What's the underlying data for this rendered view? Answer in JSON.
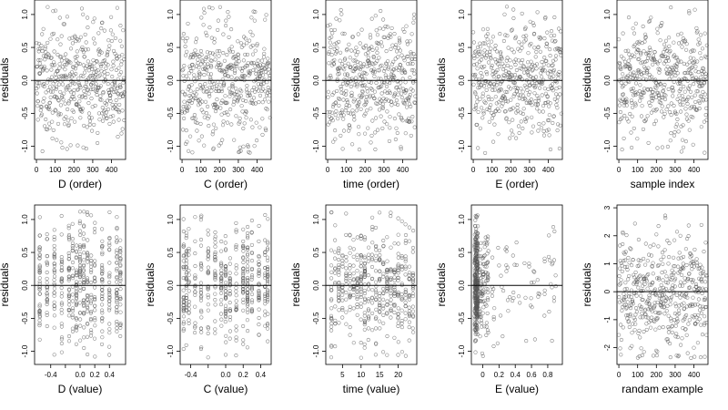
{
  "chart_data": [
    {
      "type": "scatter",
      "xlabel": "D (order)",
      "ylabel": "residuals",
      "xlim": [
        -10,
        475
      ],
      "ylim": [
        -1.2,
        1.22
      ],
      "xticks": [
        0,
        100,
        200,
        300,
        400
      ],
      "yticks": [
        -1.0,
        -0.5,
        0.0,
        0.5,
        1.0
      ],
      "ytick_labels": [
        "-1.0",
        "-0.5",
        "0.0",
        "0.5",
        "1.0"
      ],
      "hline": 0,
      "x_kind": "order",
      "n_points": 470,
      "seed": 11
    },
    {
      "type": "scatter",
      "xlabel": "C (order)",
      "ylabel": "residuals",
      "xlim": [
        -10,
        475
      ],
      "ylim": [
        -1.2,
        1.22
      ],
      "xticks": [
        0,
        100,
        200,
        300,
        400
      ],
      "yticks": [
        -1.0,
        -0.5,
        0.0,
        0.5,
        1.0
      ],
      "ytick_labels": [
        "-1.0",
        "-0.5",
        "0.0",
        "0.5",
        "1.0"
      ],
      "hline": 0,
      "x_kind": "order",
      "n_points": 470,
      "seed": 23
    },
    {
      "type": "scatter",
      "xlabel": "time (order)",
      "ylabel": "residuals",
      "xlim": [
        -10,
        475
      ],
      "ylim": [
        -1.2,
        1.22
      ],
      "xticks": [
        0,
        100,
        200,
        300,
        400
      ],
      "yticks": [
        -1.0,
        -0.5,
        0.0,
        0.5,
        1.0
      ],
      "ytick_labels": [
        "-1.0",
        "-0.5",
        "0.0",
        "0.5",
        "1.0"
      ],
      "hline": 0,
      "x_kind": "order",
      "n_points": 470,
      "seed": 37
    },
    {
      "type": "scatter",
      "xlabel": "E (order)",
      "ylabel": "residuals",
      "xlim": [
        -10,
        475
      ],
      "ylim": [
        -1.2,
        1.22
      ],
      "xticks": [
        0,
        100,
        200,
        300,
        400
      ],
      "yticks": [
        -1.0,
        -0.5,
        0.0,
        0.5,
        1.0
      ],
      "ytick_labels": [
        "-1.0",
        "-0.5",
        "0.0",
        "0.5",
        "1.0"
      ],
      "hline": 0,
      "x_kind": "order",
      "n_points": 470,
      "seed": 41
    },
    {
      "type": "scatter",
      "xlabel": "sample index",
      "ylabel": "residuals",
      "xlim": [
        -10,
        475
      ],
      "ylim": [
        -1.2,
        1.22
      ],
      "xticks": [
        0,
        100,
        200,
        300,
        400
      ],
      "yticks": [
        -1.0,
        -0.5,
        0.0,
        0.5,
        1.0
      ],
      "ytick_labels": [
        "-1.0",
        "-0.5",
        "0.0",
        "0.5",
        "1.0"
      ],
      "hline": 0,
      "x_kind": "order",
      "n_points": 470,
      "seed": 53
    },
    {
      "type": "scatter",
      "xlabel": "D (value)",
      "ylabel": "residuals",
      "xlim": [
        -0.62,
        0.62
      ],
      "ylim": [
        -1.2,
        1.22
      ],
      "xticks": [
        -0.4,
        -0.2,
        0.0,
        0.2,
        0.4
      ],
      "xtick_labels": [
        "-0.4",
        "",
        "0.0",
        "0.2",
        "0.4"
      ],
      "yticks": [
        -1.0,
        -0.5,
        0.0,
        0.5,
        1.0
      ],
      "ytick_labels": [
        "-1.0",
        "-0.5",
        "0.0",
        "0.5",
        "1.0"
      ],
      "hline": 0,
      "x_kind": "discrete",
      "x_levels": [
        -0.55,
        -0.45,
        -0.35,
        -0.25,
        -0.15,
        -0.1,
        -0.05,
        0.0,
        0.05,
        0.1,
        0.15,
        0.2,
        0.3,
        0.4,
        0.5,
        0.55
      ],
      "n_points": 470,
      "seed": 67
    },
    {
      "type": "scatter",
      "xlabel": "C (value)",
      "ylabel": "residuals",
      "xlim": [
        -0.52,
        0.52
      ],
      "ylim": [
        -1.2,
        1.22
      ],
      "xticks": [
        -0.4,
        -0.2,
        0.0,
        0.2,
        0.4
      ],
      "xtick_labels": [
        "-0.4",
        "",
        "0.0",
        "0.2",
        "0.4"
      ],
      "yticks": [
        -1.0,
        -0.5,
        0.0,
        0.5,
        1.0
      ],
      "ytick_labels": [
        "-1.0",
        "-0.5",
        "0.0",
        "0.5",
        "1.0"
      ],
      "hline": 0,
      "x_kind": "discrete",
      "x_levels": [
        -0.48,
        -0.45,
        -0.42,
        -0.35,
        -0.28,
        -0.2,
        -0.12,
        -0.05,
        0.0,
        0.05,
        0.12,
        0.2,
        0.25,
        0.3,
        0.38,
        0.45,
        0.48
      ],
      "n_points": 470,
      "seed": 71
    },
    {
      "type": "scatter",
      "xlabel": "time (value)",
      "ylabel": "residuals",
      "xlim": [
        0.5,
        25
      ],
      "ylim": [
        -1.2,
        1.22
      ],
      "xticks": [
        5,
        10,
        15,
        20
      ],
      "yticks": [
        -1.0,
        -0.5,
        0.0,
        0.5,
        1.0
      ],
      "ytick_labels": [
        "-1.0",
        "-0.5",
        "0.0",
        "0.5",
        "1.0"
      ],
      "hline": 0,
      "x_kind": "discrete",
      "x_levels": [
        2,
        3,
        4,
        5,
        6,
        7,
        8,
        9,
        10,
        11,
        12,
        13,
        14,
        15,
        16,
        17,
        18,
        19,
        20,
        21,
        22,
        23,
        24
      ],
      "n_points": 470,
      "seed": 83
    },
    {
      "type": "scatter",
      "xlabel": "E (value)",
      "ylabel": "residuals",
      "xlim": [
        -0.14,
        0.98
      ],
      "ylim": [
        -1.2,
        1.22
      ],
      "xticks": [
        0.0,
        0.2,
        0.4,
        0.6,
        0.8
      ],
      "yticks": [
        -1.0,
        -0.5,
        0.0,
        0.5,
        1.0
      ],
      "ytick_labels": [
        "-1.0",
        "-0.5",
        "0.0",
        "0.5",
        "1.0"
      ],
      "hline": 0,
      "x_kind": "skewed",
      "n_points": 470,
      "seed": 97
    },
    {
      "type": "scatter",
      "xlabel": "randam example",
      "ylabel": "residuals",
      "xlim": [
        -10,
        475
      ],
      "ylim": [
        -2.6,
        3.1
      ],
      "xticks": [
        0,
        100,
        200,
        300,
        400
      ],
      "yticks": [
        -2,
        -1,
        0,
        1,
        2,
        3
      ],
      "hline": 0,
      "x_kind": "order",
      "n_points": 470,
      "seed": 101
    }
  ],
  "colors": {
    "points": "#555555",
    "axes": "#000000",
    "background": "#ffffff"
  }
}
